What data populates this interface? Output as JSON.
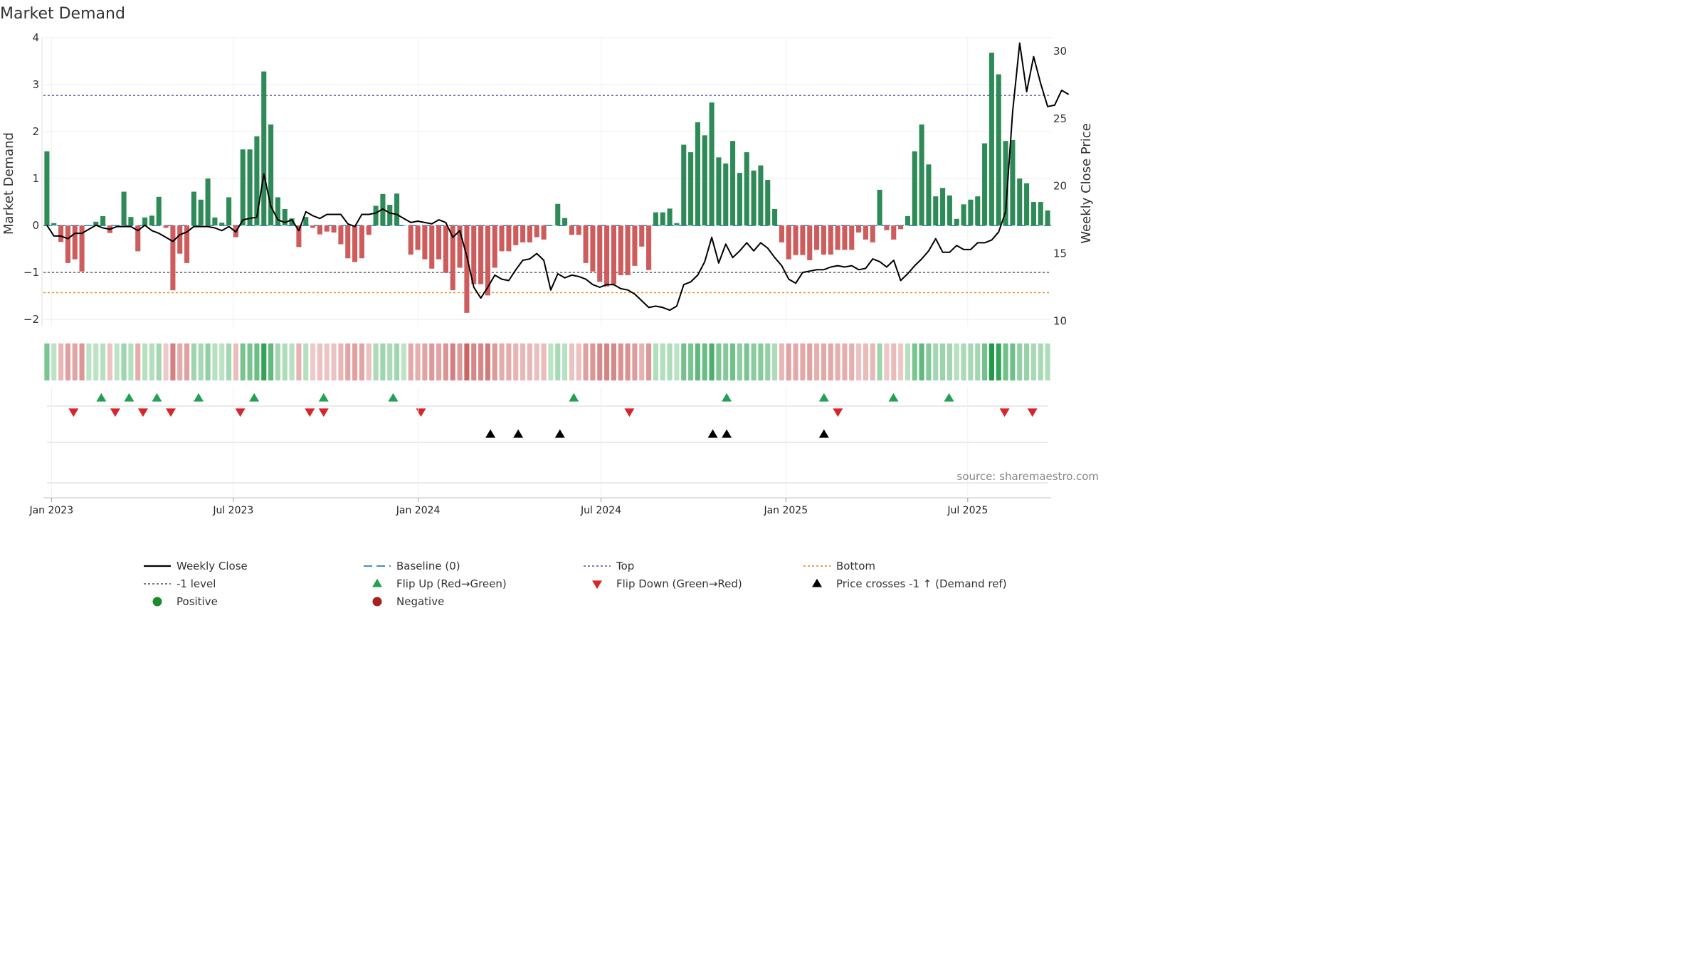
{
  "chart_data": {
    "type": "bar",
    "title": "Market Demand",
    "ylabel": "Market Demand",
    "y2label": "Weekly Close Price",
    "ylim": [
      -2.15,
      4.0
    ],
    "y2lim": [
      9.6,
      31.0
    ],
    "yticks": [
      -2,
      -1,
      0,
      1,
      2,
      3,
      4
    ],
    "yticks_text": [
      "−2",
      "−1",
      "0",
      "1",
      "2",
      "3",
      "4"
    ],
    "y2ticks": [
      10,
      15,
      20,
      25,
      30
    ],
    "x_start": "2023-01-01",
    "x_end": "2025-09-29",
    "week_step": 7,
    "date_ticks": [
      {
        "label": "Jan 2023",
        "day": 8
      },
      {
        "label": "Jul 2023",
        "day": 189
      },
      {
        "label": "Jan 2024",
        "day": 373
      },
      {
        "label": "Jul 2024",
        "day": 555
      },
      {
        "label": "Jan 2025",
        "day": 739
      },
      {
        "label": "Jul 2025",
        "day": 920
      }
    ],
    "reference_lines": [
      {
        "name": "Top",
        "value": 2.77,
        "color": "#6a6ab0"
      },
      {
        "name": "-1 level",
        "value": -1.0,
        "color": "#666666"
      },
      {
        "name": "Bottom",
        "value": -1.43,
        "color": "#e8922c"
      },
      {
        "name": "Baseline (0)",
        "value": 0,
        "color": "#2a7fb8"
      }
    ],
    "demand": [
      1.58,
      0.05,
      -0.35,
      -0.8,
      -0.72,
      -0.98,
      0.0,
      0.08,
      0.2,
      -0.16,
      0.0,
      0.72,
      0.18,
      -0.55,
      0.17,
      0.21,
      0.61,
      -0.05,
      -1.38,
      -0.6,
      -0.8,
      0.72,
      0.55,
      1.0,
      0.17,
      0.06,
      0.6,
      -0.25,
      1.62,
      1.62,
      1.9,
      3.28,
      2.15,
      0.6,
      0.35,
      0.15,
      -0.46,
      0.18,
      -0.05,
      -0.19,
      -0.13,
      -0.15,
      -0.4,
      -0.7,
      -0.78,
      -0.7,
      -0.2,
      0.42,
      0.67,
      0.44,
      0.68,
      0.0,
      -0.62,
      -0.52,
      -0.72,
      -0.92,
      -0.72,
      -1.01,
      -1.38,
      -0.9,
      -1.86,
      -1.25,
      -1.25,
      -1.49,
      -0.9,
      -0.55,
      -0.55,
      -0.42,
      -0.36,
      -0.36,
      -0.25,
      -0.3,
      0.0,
      0.46,
      0.16,
      -0.2,
      -0.2,
      -0.8,
      -0.98,
      -1.2,
      -1.3,
      -1.25,
      -1.06,
      -1.06,
      -0.86,
      -0.45,
      -0.95,
      0.28,
      0.28,
      0.36,
      0.05,
      1.72,
      1.56,
      2.2,
      1.92,
      2.62,
      1.45,
      1.32,
      1.8,
      1.12,
      1.56,
      1.17,
      1.28,
      0.97,
      0.35,
      -0.36,
      -0.72,
      -0.63,
      -0.63,
      -0.74,
      -0.52,
      -0.62,
      -0.62,
      -0.52,
      -0.52,
      -0.52,
      -0.15,
      -0.3,
      -0.36,
      0.76,
      -0.1,
      -0.3,
      -0.08,
      0.2,
      1.58,
      2.15,
      1.3,
      0.62,
      0.8,
      0.64,
      0.14,
      0.45,
      0.55,
      0.62,
      1.75,
      3.68,
      3.22,
      1.8,
      1.82,
      1.0,
      0.9,
      0.5,
      0.5,
      0.32
    ],
    "weekly_close": [
      17.1,
      16.3,
      16.3,
      16.1,
      16.5,
      16.5,
      16.8,
      17.1,
      16.9,
      16.8,
      17.0,
      17.0,
      17.0,
      16.7,
      17.1,
      16.7,
      16.5,
      16.2,
      15.9,
      16.4,
      16.6,
      17.0,
      17.0,
      17.0,
      16.9,
      16.7,
      17.0,
      16.6,
      17.5,
      17.6,
      17.7,
      20.9,
      18.5,
      17.5,
      17.3,
      17.5,
      16.7,
      18.1,
      17.8,
      17.6,
      17.9,
      17.9,
      17.9,
      17.2,
      17.0,
      17.9,
      17.9,
      18.0,
      18.3,
      18.0,
      17.9,
      17.6,
      17.3,
      17.4,
      17.3,
      17.2,
      17.5,
      17.3,
      16.2,
      16.7,
      14.8,
      12.5,
      11.7,
      12.5,
      13.4,
      13.1,
      13.0,
      13.8,
      14.5,
      14.6,
      15.0,
      14.5,
      12.3,
      13.5,
      13.2,
      13.4,
      13.3,
      13.1,
      12.7,
      12.5,
      12.7,
      12.7,
      12.4,
      12.3,
      12.0,
      11.5,
      11.0,
      11.1,
      11.0,
      10.8,
      11.1,
      12.7,
      12.9,
      13.4,
      14.4,
      16.2,
      14.3,
      15.7,
      14.7,
      15.2,
      15.8,
      15.2,
      15.8,
      15.4,
      14.7,
      14.1,
      13.1,
      12.8,
      13.6,
      13.7,
      13.8,
      13.8,
      14.0,
      14.1,
      14.0,
      14.1,
      13.8,
      13.9,
      14.6,
      14.4,
      14.0,
      14.5,
      13.0,
      13.5,
      14.1,
      14.6,
      15.2,
      16.1,
      15.1,
      15.1,
      15.6,
      15.3,
      15.3,
      15.8,
      15.8,
      16.0,
      16.6,
      18.1,
      25.5,
      30.6,
      27.0,
      29.6,
      27.6,
      25.9,
      26.0,
      27.1,
      26.8
    ],
    "flip_up_weeks": [
      3,
      5,
      7,
      10,
      14,
      19,
      24,
      37,
      48,
      55,
      60,
      64
    ],
    "flip_down_weeks": [
      1,
      4,
      6,
      8,
      13,
      18,
      19,
      26,
      41,
      56,
      68,
      70
    ],
    "price_cross_weeks": [
      31,
      33,
      36,
      47,
      48,
      55
    ],
    "legend": [
      {
        "label": "Weekly Close",
        "symbol": "solid-line",
        "color": "#000000"
      },
      {
        "label": "Baseline (0)",
        "symbol": "dashed-line",
        "color": "#2a7fb8"
      },
      {
        "label": "Top",
        "symbol": "dotted-line",
        "color": "#6a6ab0"
      },
      {
        "label": "Bottom",
        "symbol": "dotted-line",
        "color": "#e8922c"
      },
      {
        "label": "-1 level",
        "symbol": "dotted-line",
        "color": "#666666"
      },
      {
        "label": "Flip Up (Red→Green)",
        "symbol": "triangle-up",
        "color": "#22a055"
      },
      {
        "label": "Flip Down (Green→Red)",
        "symbol": "triangle-down",
        "color": "#d6262b"
      },
      {
        "label": "Price crosses -1 ↑ (Demand ref)",
        "symbol": "triangle-up",
        "color": "#000000"
      },
      {
        "label": "Positive",
        "symbol": "circle",
        "color": "#1f8a2a"
      },
      {
        "label": "Negative",
        "symbol": "circle",
        "color": "#a82020"
      }
    ],
    "source": "source: sharemaestro.com"
  },
  "colors": {
    "positive_bar": "#2e8b57",
    "negative_bar": "#cd5c5c",
    "flip_up": "#22a055",
    "flip_down": "#d6262b",
    "price_line": "#000000"
  }
}
